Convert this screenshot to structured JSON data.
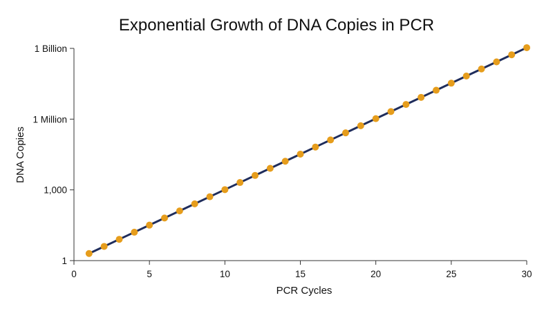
{
  "chart_data": {
    "type": "line",
    "title": "Exponential Growth of DNA Copies in PCR",
    "xlabel": "PCR Cycles",
    "ylabel": "DNA Copies",
    "xlim": [
      0,
      30
    ],
    "ylim": [
      1,
      1000000000
    ],
    "yscale": "log",
    "grid": false,
    "x_ticks": [
      {
        "value": 0,
        "label": "0"
      },
      {
        "value": 5,
        "label": "5"
      },
      {
        "value": 10,
        "label": "10"
      },
      {
        "value": 15,
        "label": "15"
      },
      {
        "value": 20,
        "label": "20"
      },
      {
        "value": 25,
        "label": "25"
      },
      {
        "value": 30,
        "label": "30"
      }
    ],
    "y_ticks": [
      {
        "value": 1,
        "label": "1"
      },
      {
        "value": 1000,
        "label": "1,000"
      },
      {
        "value": 1000000,
        "label": "1 Million"
      },
      {
        "value": 1000000000,
        "label": "1 Billion"
      }
    ],
    "line_color": "#1f2d5c",
    "marker_color": "#e69d1c",
    "series": [
      {
        "x": [
          1,
          2,
          3,
          4,
          5,
          6,
          7,
          8,
          9,
          10,
          11,
          12,
          13,
          14,
          15,
          16,
          17,
          18,
          19,
          20,
          21,
          22,
          23,
          24,
          25,
          26,
          27,
          28,
          29,
          30
        ],
        "values": [
          2,
          4,
          8,
          16,
          32,
          64,
          128,
          256,
          512,
          1024,
          2048,
          4096,
          8192,
          16384,
          32768,
          65536,
          131072,
          262144,
          524288,
          1048576,
          2097152,
          4194304,
          8388608,
          16777216,
          33554432,
          67108864,
          134217728,
          268435456,
          536870912,
          1073741824
        ]
      }
    ]
  }
}
